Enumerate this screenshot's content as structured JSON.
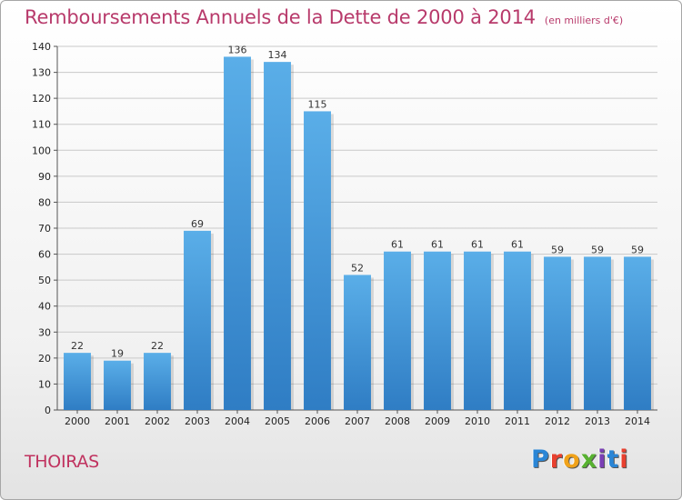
{
  "header": {
    "title": "Remboursements Annuels de la Dette de 2000 à 2014",
    "unit": "(en milliers d'€)"
  },
  "footer": {
    "city": "THOIRAS",
    "logo": "Proxiti"
  },
  "colors": {
    "title": "#b83a6b",
    "bar_top": "#5aaee8",
    "bar_bottom": "#2f7dc4",
    "grid": "#c9c9c9"
  },
  "chart_data": {
    "type": "bar",
    "title": "Remboursements Annuels de la Dette de 2000 à 2014",
    "subtitle": "(en milliers d'€)",
    "xlabel": "",
    "ylabel": "",
    "categories": [
      "2000",
      "2001",
      "2002",
      "2003",
      "2004",
      "2005",
      "2006",
      "2007",
      "2008",
      "2009",
      "2010",
      "2011",
      "2012",
      "2013",
      "2014"
    ],
    "values": [
      22,
      19,
      22,
      69,
      136,
      134,
      115,
      52,
      61,
      61,
      61,
      61,
      59,
      59,
      59
    ],
    "ylim": [
      0,
      140
    ],
    "yticks": [
      0,
      10,
      20,
      30,
      40,
      50,
      60,
      70,
      80,
      90,
      100,
      110,
      120,
      130,
      140
    ],
    "grid": true,
    "data_labels": true,
    "legend": "none"
  }
}
